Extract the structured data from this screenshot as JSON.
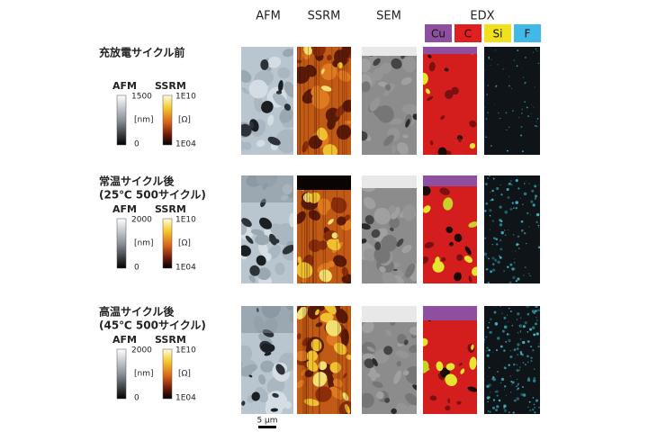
{
  "columns": [
    "AFM",
    "SSRM",
    "SEM",
    "EDX"
  ],
  "edx_legend": [
    "Cu",
    "C",
    "Si",
    "F"
  ],
  "rows": [
    {
      "title_lines": [
        "充放電サイクル前"
      ],
      "afm": {
        "label": "AFM",
        "max": 1500,
        "unit": "[nm]",
        "min": 0
      },
      "ssrm": {
        "label": "SSRM",
        "max": "1E10",
        "unit": "[Ω]",
        "min": "1E04"
      }
    },
    {
      "title_lines": [
        "常温サイクル後",
        "(25℃ 500サイクル)"
      ],
      "afm": {
        "label": "AFM",
        "max": 2000,
        "unit": "[nm]",
        "min": 0
      },
      "ssrm": {
        "label": "SSRM",
        "max": "1E10",
        "unit": "[Ω]",
        "min": "1E04"
      }
    },
    {
      "title_lines": [
        "高温サイクル後",
        "(45℃ 500サイクル)"
      ],
      "afm": {
        "label": "AFM",
        "max": 2000,
        "unit": "[nm]",
        "min": 0
      },
      "ssrm": {
        "label": "SSRM",
        "max": "1E10",
        "unit": "[Ω]",
        "min": "1E04"
      }
    }
  ],
  "scale_bar": "5 μm"
}
